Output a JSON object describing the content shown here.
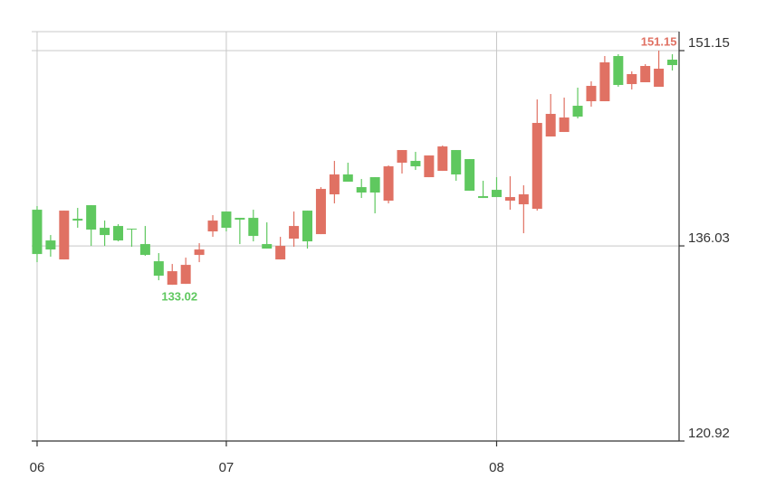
{
  "chart_data": {
    "type": "candlestick",
    "up_color": "#5fc85f",
    "down_color": "#e07163",
    "grid": true,
    "max_label": "151.15",
    "min_label": "133.02",
    "xlim": [
      -0.4,
      47.5
    ],
    "xticks": [
      {
        "value": 0,
        "label": "06"
      },
      {
        "value": 14,
        "label": "07"
      },
      {
        "value": 34,
        "label": "08"
      }
    ],
    "ylim": [
      120.92,
      152.62
    ],
    "yticks": [
      120.92,
      136.03,
      151.15
    ],
    "open": [
      135.4,
      135.75,
      138.76,
      137.99,
      137.29,
      136.87,
      136.45,
      137.29,
      135.33,
      133.72,
      134.07,
      134.56,
      135.75,
      137.99,
      137.43,
      138.06,
      136.8,
      135.82,
      136.03,
      137.57,
      136.38,
      140.44,
      141.56,
      141.0,
      140.16,
      140.16,
      142.19,
      143.45,
      142.19,
      143.03,
      143.73,
      141.56,
      140.3,
      139.74,
      139.81,
      139.81,
      140.02,
      145.55,
      146.25,
      145.97,
      146.04,
      148.42,
      150.24,
      148.49,
      149.33,
      149.96,
      149.75,
      150.03
    ],
    "high": [
      139.11,
      136.87,
      138.76,
      138.97,
      139.18,
      137.99,
      137.71,
      137.36,
      137.57,
      135.47,
      134.63,
      135.12,
      136.24,
      138.41,
      138.69,
      138.2,
      138.83,
      137.85,
      136.73,
      138.69,
      138.76,
      140.58,
      142.61,
      142.47,
      141.21,
      141.35,
      142.26,
      143.45,
      143.31,
      143.03,
      143.8,
      143.45,
      142.75,
      141.07,
      141.35,
      141.42,
      140.72,
      147.37,
      147.79,
      147.51,
      148.28,
      148.77,
      150.73,
      150.87,
      149.54,
      150.1,
      151.15,
      150.87
    ],
    "low": [
      134.77,
      135.19,
      134.98,
      137.43,
      136.03,
      136.03,
      136.38,
      135.96,
      135.26,
      133.37,
      133.02,
      133.09,
      134.77,
      136.73,
      137.15,
      136.17,
      136.38,
      135.82,
      134.98,
      135.96,
      135.82,
      136.94,
      139.32,
      141.0,
      139.74,
      138.55,
      139.32,
      141.63,
      141.91,
      141.35,
      141.84,
      141.07,
      140.3,
      139.74,
      139.81,
      138.83,
      137.01,
      138.76,
      144.5,
      144.85,
      145.9,
      146.81,
      147.23,
      148.35,
      148.14,
      148.7,
      148.35,
      149.61
    ],
    "close": [
      138.83,
      136.45,
      134.98,
      138.13,
      139.18,
      137.43,
      137.57,
      137.36,
      136.17,
      134.84,
      133.02,
      133.09,
      135.33,
      137.15,
      138.69,
      138.2,
      138.2,
      136.17,
      134.98,
      136.59,
      138.76,
      136.94,
      140.02,
      141.56,
      140.58,
      141.35,
      139.53,
      142.47,
      142.61,
      141.35,
      141.84,
      143.45,
      142.75,
      139.88,
      140.37,
      139.53,
      139.25,
      138.9,
      144.5,
      144.85,
      146.88,
      147.23,
      147.23,
      150.73,
      148.56,
      148.7,
      148.35,
      150.45
    ]
  }
}
